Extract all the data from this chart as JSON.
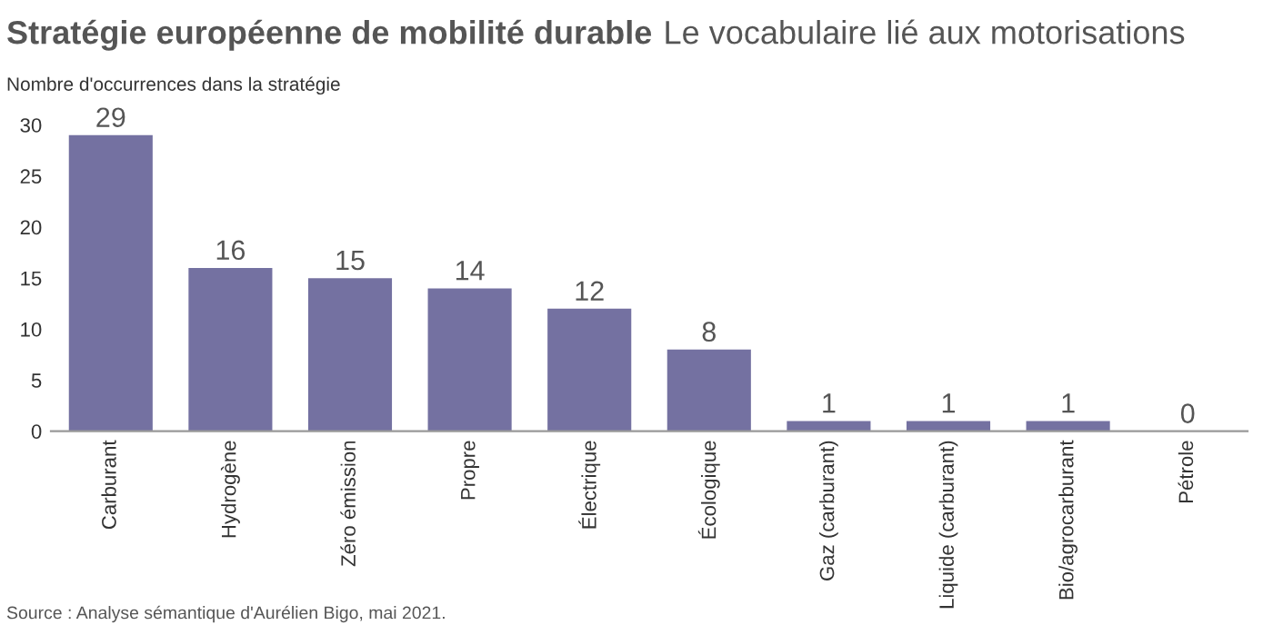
{
  "chart_data": {
    "type": "bar",
    "title": "Stratégie européenne de mobilité durable",
    "subtitle": "Le vocabulaire lié aux motorisations",
    "ylabel": "Nombre d'occurrences dans la stratégie",
    "categories": [
      "Carburant",
      "Hydrogène",
      "Zéro émission",
      "Propre",
      "Électrique",
      "Écologique",
      "Gaz (carburant)",
      "Liquide (carburant)",
      "Bio/agrocarburant",
      "Pétrole"
    ],
    "values": [
      29,
      16,
      15,
      14,
      12,
      8,
      1,
      1,
      1,
      0
    ],
    "color": "#7471a1",
    "ylim": [
      0,
      30
    ],
    "yticks": [
      0,
      5,
      10,
      15,
      20,
      25,
      30
    ],
    "grid": false,
    "data_labels": true,
    "annotations": [
      "Source : Analyse sémantique d'Aurélien Bigo, mai 2021."
    ]
  }
}
